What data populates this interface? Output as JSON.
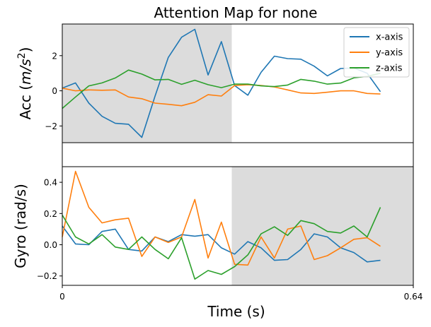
{
  "chart_data": {
    "type": "line",
    "title": "Attention Map for none",
    "xlabel": "Time (s)",
    "x_ticks": [
      "0",
      "0.64"
    ],
    "xlim": [
      0,
      0.64
    ],
    "colors": {
      "x-axis": "#1f77b4",
      "y-axis": "#ff7f0e",
      "z-axis": "#2ca02c",
      "attention_shade": "#dcdcdc"
    },
    "panels": [
      {
        "id": "acc",
        "ylabel_prefix": "Acc (",
        "ylabel_unit_base": "m/s",
        "ylabel_unit_exp": "2",
        "ylabel_suffix": ")",
        "ylim": [
          -2.95,
          3.8
        ],
        "y_ticks": [
          -2,
          0,
          2
        ],
        "y_tick_labels": [
          "−2",
          "0",
          "2"
        ],
        "attention_span": [
          0,
          0.309
        ],
        "legend": {
          "placement": "top-right",
          "entries": [
            "x-axis",
            "y-axis",
            "z-axis"
          ]
        },
        "series": [
          {
            "name": "x-axis",
            "values": [
              0.15,
              0.45,
              -0.7,
              -1.45,
              -1.85,
              -1.9,
              -2.65,
              -0.3,
              1.9,
              3.05,
              3.5,
              0.9,
              2.8,
              0.3,
              -0.25,
              1.05,
              1.97,
              1.83,
              1.8,
              1.4,
              0.85,
              1.27,
              1.3,
              1.0,
              -0.05
            ]
          },
          {
            "name": "y-axis",
            "values": [
              0.15,
              0.0,
              0.05,
              0.03,
              0.05,
              -0.35,
              -0.45,
              -0.7,
              -0.77,
              -0.85,
              -0.65,
              -0.22,
              -0.3,
              0.3,
              0.35,
              0.3,
              0.22,
              0.05,
              -0.12,
              -0.15,
              -0.08,
              -0.0,
              -0.0,
              -0.15,
              -0.18
            ]
          },
          {
            "name": "z-axis",
            "values": [
              -1.0,
              -0.35,
              0.28,
              0.45,
              0.73,
              1.18,
              0.95,
              0.62,
              0.65,
              0.37,
              0.6,
              0.35,
              0.18,
              0.38,
              0.38,
              0.28,
              0.24,
              0.33,
              0.65,
              0.55,
              0.38,
              0.44,
              0.74,
              0.82,
              1.0
            ]
          }
        ]
      },
      {
        "id": "gyro",
        "ylabel": "Gyro (rad/s)",
        "ylim": [
          -0.26,
          0.5
        ],
        "y_ticks": [
          -0.2,
          0.0,
          0.2,
          0.4
        ],
        "y_tick_labels": [
          "−0.2",
          "0.0",
          "0.2",
          "0.4"
        ],
        "attention_span": [
          0.309,
          0.64
        ],
        "series": [
          {
            "name": "x-axis",
            "values": [
              0.12,
              0.005,
              0.0,
              0.085,
              0.1,
              -0.03,
              -0.04,
              0.05,
              0.02,
              0.065,
              0.055,
              0.065,
              -0.02,
              -0.06,
              0.02,
              -0.02,
              -0.1,
              -0.095,
              -0.03,
              0.07,
              0.05,
              -0.02,
              -0.05,
              -0.11,
              -0.1
            ]
          },
          {
            "name": "y-axis",
            "values": [
              0.05,
              0.47,
              0.24,
              0.14,
              0.16,
              0.17,
              -0.075,
              0.05,
              0.015,
              0.05,
              0.29,
              -0.085,
              0.145,
              -0.125,
              -0.13,
              0.05,
              -0.085,
              0.1,
              0.12,
              -0.095,
              -0.07,
              -0.02,
              0.035,
              0.045,
              -0.01
            ]
          },
          {
            "name": "z-axis",
            "values": [
              0.19,
              0.05,
              0.005,
              0.065,
              -0.015,
              -0.03,
              0.05,
              -0.03,
              -0.09,
              0.045,
              -0.22,
              -0.165,
              -0.19,
              -0.14,
              -0.065,
              0.07,
              0.115,
              0.06,
              0.155,
              0.135,
              0.085,
              0.075,
              0.12,
              0.05,
              0.24
            ]
          }
        ]
      }
    ]
  }
}
